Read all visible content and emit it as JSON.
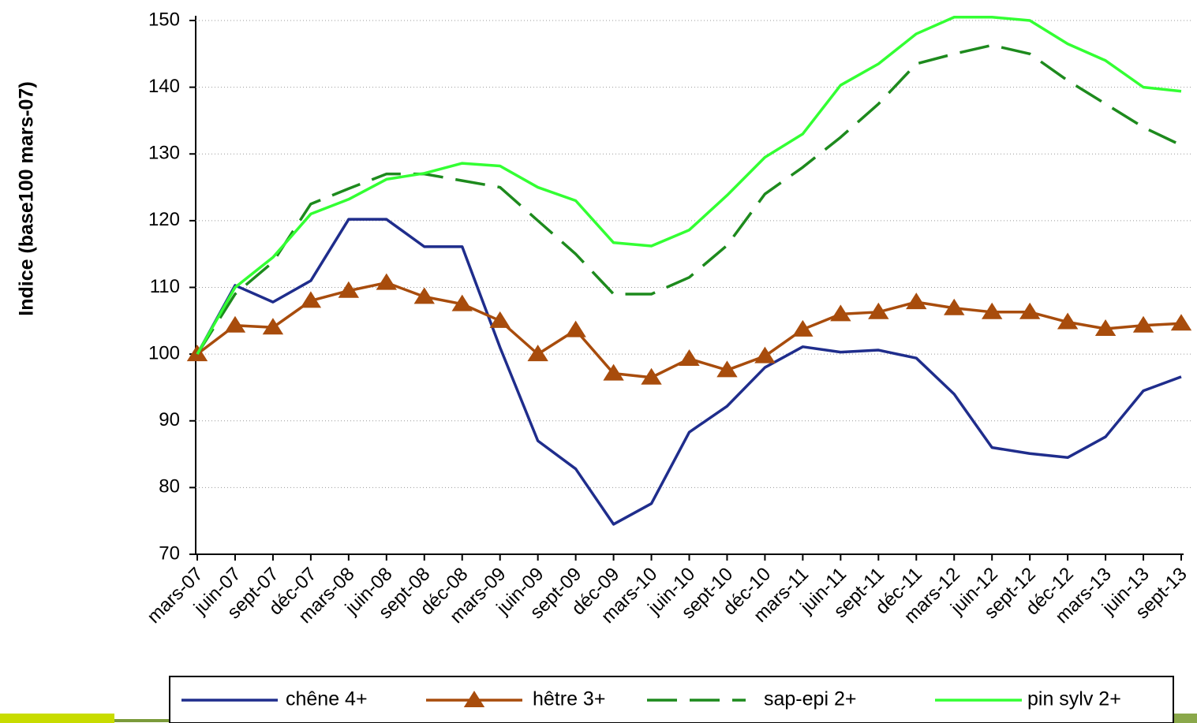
{
  "chart_data": {
    "type": "line",
    "y_label": "Indice (base100 mars-07)",
    "categories": [
      "mars-07",
      "juin-07",
      "sept-07",
      "déc-07",
      "mars-08",
      "juin-08",
      "sept-08",
      "déc-08",
      "mars-09",
      "juin-09",
      "sept-09",
      "déc-09",
      "mars-10",
      "juin-10",
      "sept-10",
      "déc-10",
      "mars-11",
      "juin-11",
      "sept-11",
      "déc-11",
      "mars-12",
      "juin-12",
      "sept-12",
      "déc-12",
      "mars-13",
      "juin-13",
      "sept-13"
    ],
    "series": [
      {
        "name": "chêne 4+",
        "color": "#1f2d8c",
        "values": [
          100,
          110.3,
          107.8,
          111,
          120.2,
          120.2,
          116.1,
          116.1,
          101,
          87,
          82.8,
          74.5,
          77.6,
          88.3,
          92.2,
          98,
          101.1,
          100.3,
          100.6,
          99.4,
          94,
          86,
          85.1,
          84.5,
          87.6,
          94.5,
          96.6
        ]
      },
      {
        "name": "hêtre 3+",
        "color": "#a84c0c",
        "marker": "triangle",
        "values": [
          100,
          104.3,
          104,
          108,
          109.5,
          110.7,
          108.6,
          107.5,
          105,
          100,
          103.6,
          97.1,
          96.5,
          99.3,
          97.6,
          99.7,
          103.7,
          106,
          106.3,
          107.8,
          106.9,
          106.3,
          106.3,
          104.8,
          103.8,
          104.3,
          104.6
        ]
      },
      {
        "name": "sap-epi 2+",
        "color": "#1d8a1d",
        "dashed": true,
        "values": [
          100,
          109,
          113.8,
          122.5,
          124.8,
          127,
          127,
          126,
          125,
          120,
          115,
          109,
          109,
          111.5,
          116.3,
          124,
          128,
          132.5,
          137.5,
          143.5,
          145,
          146.3,
          145,
          141,
          137.5,
          134,
          131.3
        ]
      },
      {
        "name": "pin sylv 2+",
        "color": "#33ff33",
        "values": [
          100,
          110,
          114.5,
          121,
          123.2,
          126.2,
          127.1,
          128.6,
          128.2,
          125,
          123,
          116.7,
          116.2,
          118.6,
          123.8,
          129.5,
          133,
          140.3,
          143.5,
          148,
          150.5,
          150.5,
          150,
          146.5,
          144,
          140,
          139.4
        ]
      }
    ],
    "ylim": [
      70,
      150
    ],
    "yticks": [
      70,
      80,
      90,
      100,
      110,
      120,
      130,
      140,
      150
    ],
    "grid": true
  }
}
